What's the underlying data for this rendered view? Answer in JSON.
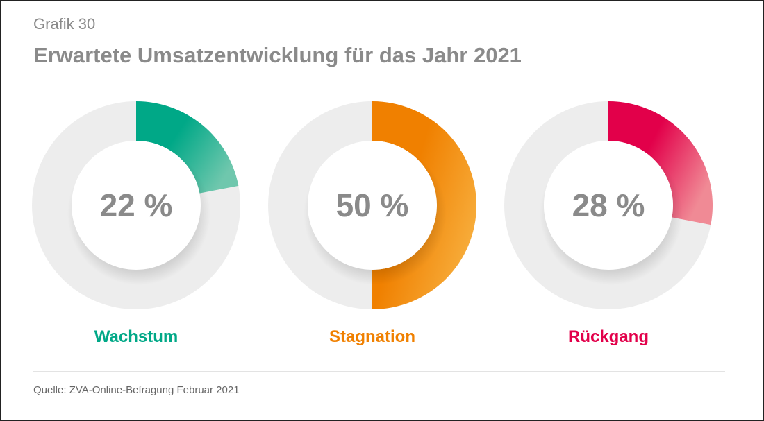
{
  "chart_data": {
    "type": "pie",
    "subtitle": "Grafik 30",
    "title": "Erwartete Umsatzentwicklung für das Jahr 2021",
    "series": [
      {
        "name": "Wachstum",
        "value": 22,
        "label": "22 %",
        "color": "#00a887",
        "color_end": "#6fc7ad"
      },
      {
        "name": "Stagnation",
        "value": 50,
        "label": "50 %",
        "color": "#f08000",
        "color_end": "#f7ac3a"
      },
      {
        "name": "Rückgang",
        "value": 28,
        "label": "28 %",
        "color": "#e2004a",
        "color_end": "#f08a95"
      }
    ],
    "track_color": "#ededed",
    "source": "Quelle: ZVA-Online-Befragung Februar 2021"
  }
}
